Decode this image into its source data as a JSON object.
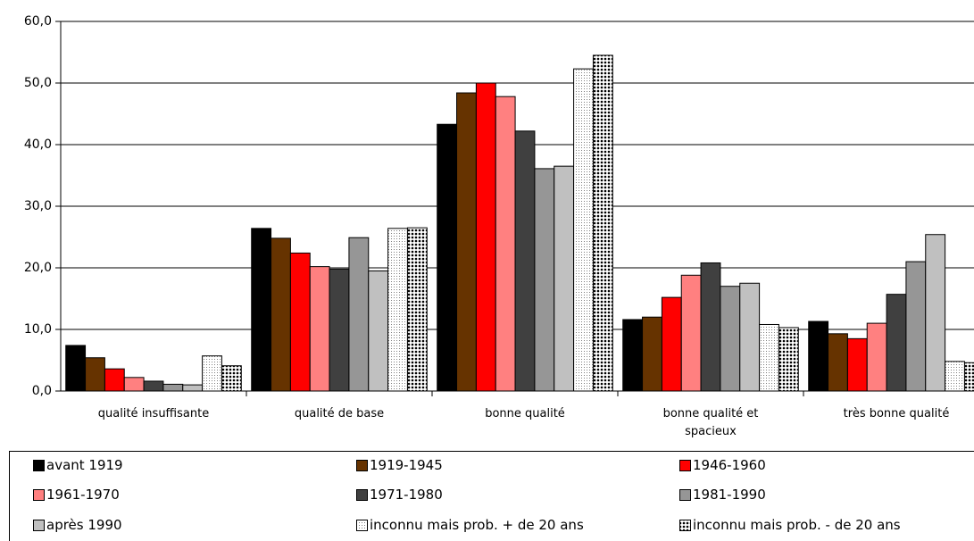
{
  "chart_data": {
    "type": "bar",
    "categories": [
      "qualité insuffisante",
      "qualité de base",
      "bonne qualité",
      "bonne qualité et spacieux",
      "très bonne qualité"
    ],
    "series": [
      {
        "name": "avant 1919",
        "color": "#000000",
        "values": [
          7.4,
          26.4,
          43.3,
          11.6,
          11.3
        ]
      },
      {
        "name": "1919-1945",
        "color": "#663300",
        "values": [
          5.4,
          24.8,
          48.4,
          12.0,
          9.3
        ]
      },
      {
        "name": "1946-1960",
        "color": "#ff0000",
        "values": [
          3.6,
          22.4,
          50.0,
          15.2,
          8.5
        ]
      },
      {
        "name": "1961-1970",
        "color": "#ff8080",
        "values": [
          2.2,
          20.2,
          47.8,
          18.8,
          11.0
        ]
      },
      {
        "name": "1971-1980",
        "color": "#404040",
        "values": [
          1.6,
          19.8,
          42.2,
          20.8,
          15.7
        ]
      },
      {
        "name": "1981-1990",
        "color": "#969696",
        "values": [
          1.1,
          24.9,
          36.1,
          17.0,
          21.0
        ]
      },
      {
        "name": "après 1990",
        "color": "#c0c0c0",
        "values": [
          1.0,
          19.5,
          36.5,
          17.5,
          25.4
        ]
      },
      {
        "name": "inconnu mais prob. + de 20 ans",
        "color": "#ffffff",
        "pattern": "light-dots",
        "values": [
          5.7,
          26.4,
          52.3,
          10.8,
          4.8
        ]
      },
      {
        "name": "inconnu mais prob. - de 20 ans",
        "color": "#ffffff",
        "pattern": "dark-dots",
        "values": [
          4.1,
          26.5,
          54.5,
          10.3,
          4.6
        ]
      }
    ],
    "ylim": [
      0,
      60
    ],
    "yticks": [
      {
        "value": 0,
        "label": "0,0"
      },
      {
        "value": 10,
        "label": "10,0"
      },
      {
        "value": 20,
        "label": "20,0"
      },
      {
        "value": 30,
        "label": "30,0"
      },
      {
        "value": 40,
        "label": "40,0"
      },
      {
        "value": 50,
        "label": "50,0"
      },
      {
        "value": 60,
        "label": "60,0"
      }
    ],
    "grid": true,
    "legend": "bottom"
  }
}
